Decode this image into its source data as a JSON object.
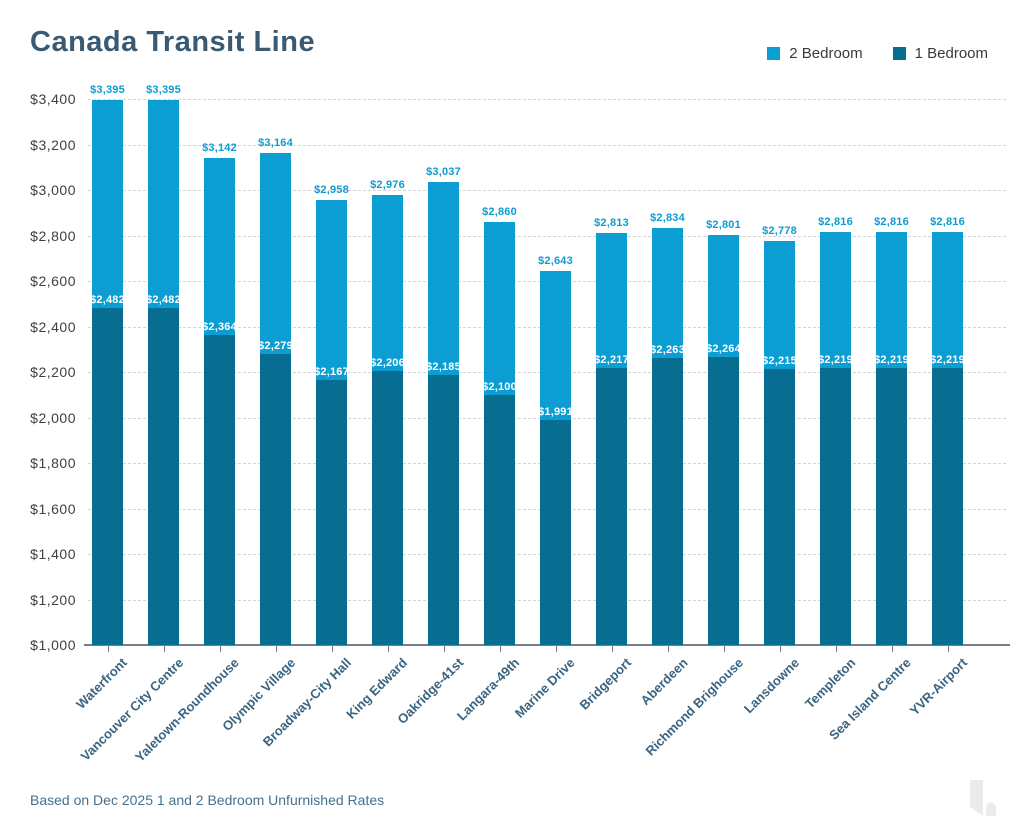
{
  "header": {
    "title": "Canada Transit Line",
    "legend": [
      {
        "label": "2 Bedroom",
        "color": "#0c9dd3"
      },
      {
        "label": "1 Bedroom",
        "color": "#086e91"
      }
    ]
  },
  "footer": {
    "note": "Based on Dec 2025 1 and 2 Bedroom Unfurnished Rates"
  },
  "chart_data": {
    "type": "bar",
    "title": "Canada Transit Line",
    "categories": [
      "Waterfront",
      "Vancouver City Centre",
      "Yaletown-Roundhouse",
      "Olympic Village",
      "Broadway-City Hall",
      "King Edward",
      "Oakridge-41st",
      "Langara-49th",
      "Marine Drive",
      "Bridgeport",
      "Aberdeen",
      "Richmond Brighouse",
      "Lansdowne",
      "Templeton",
      "Sea Island Centre",
      "YVR-Airport"
    ],
    "series": [
      {
        "name": "2 Bedroom",
        "color": "#0c9dd3",
        "values": [
          3395,
          3395,
          3142,
          3164,
          2958,
          2976,
          3037,
          2860,
          2643,
          2813,
          2834,
          2801,
          2778,
          2816,
          2816,
          2816
        ]
      },
      {
        "name": "1 Bedroom",
        "color": "#086e91",
        "values": [
          2482,
          2482,
          2364,
          2279,
          2167,
          2206,
          2185,
          2100,
          1991,
          2217,
          2263,
          2264,
          2215,
          2219,
          2219,
          2219
        ]
      }
    ],
    "bar_style": "overlaid-from-baseline (1 Bedroom bar drawn in front of 2 Bedroom bar)",
    "value_label_prefix": "$",
    "xlabel": "",
    "ylabel": "",
    "ylim": [
      1000,
      3400
    ],
    "ytick_step": 200,
    "ytick_labels": [
      "$1,000",
      "$1,200",
      "$1,400",
      "$1,600",
      "$1,800",
      "$2,000",
      "$2,200",
      "$2,400",
      "$2,600",
      "$2,800",
      "$3,000",
      "$3,200",
      "$3,400"
    ],
    "grid": "horizontal dashed",
    "legend_position": "top-right",
    "colors": {
      "title_text": "#395a72",
      "x_axis_labels": "#3a6480",
      "y_axis_labels": "#404040",
      "gridline": "#d4d4d4",
      "axis_line": "#7d7d7d",
      "footer_text": "#47708e",
      "value_label_2bed": "#0c9dd3",
      "value_label_1bed": "#ffffff"
    }
  }
}
